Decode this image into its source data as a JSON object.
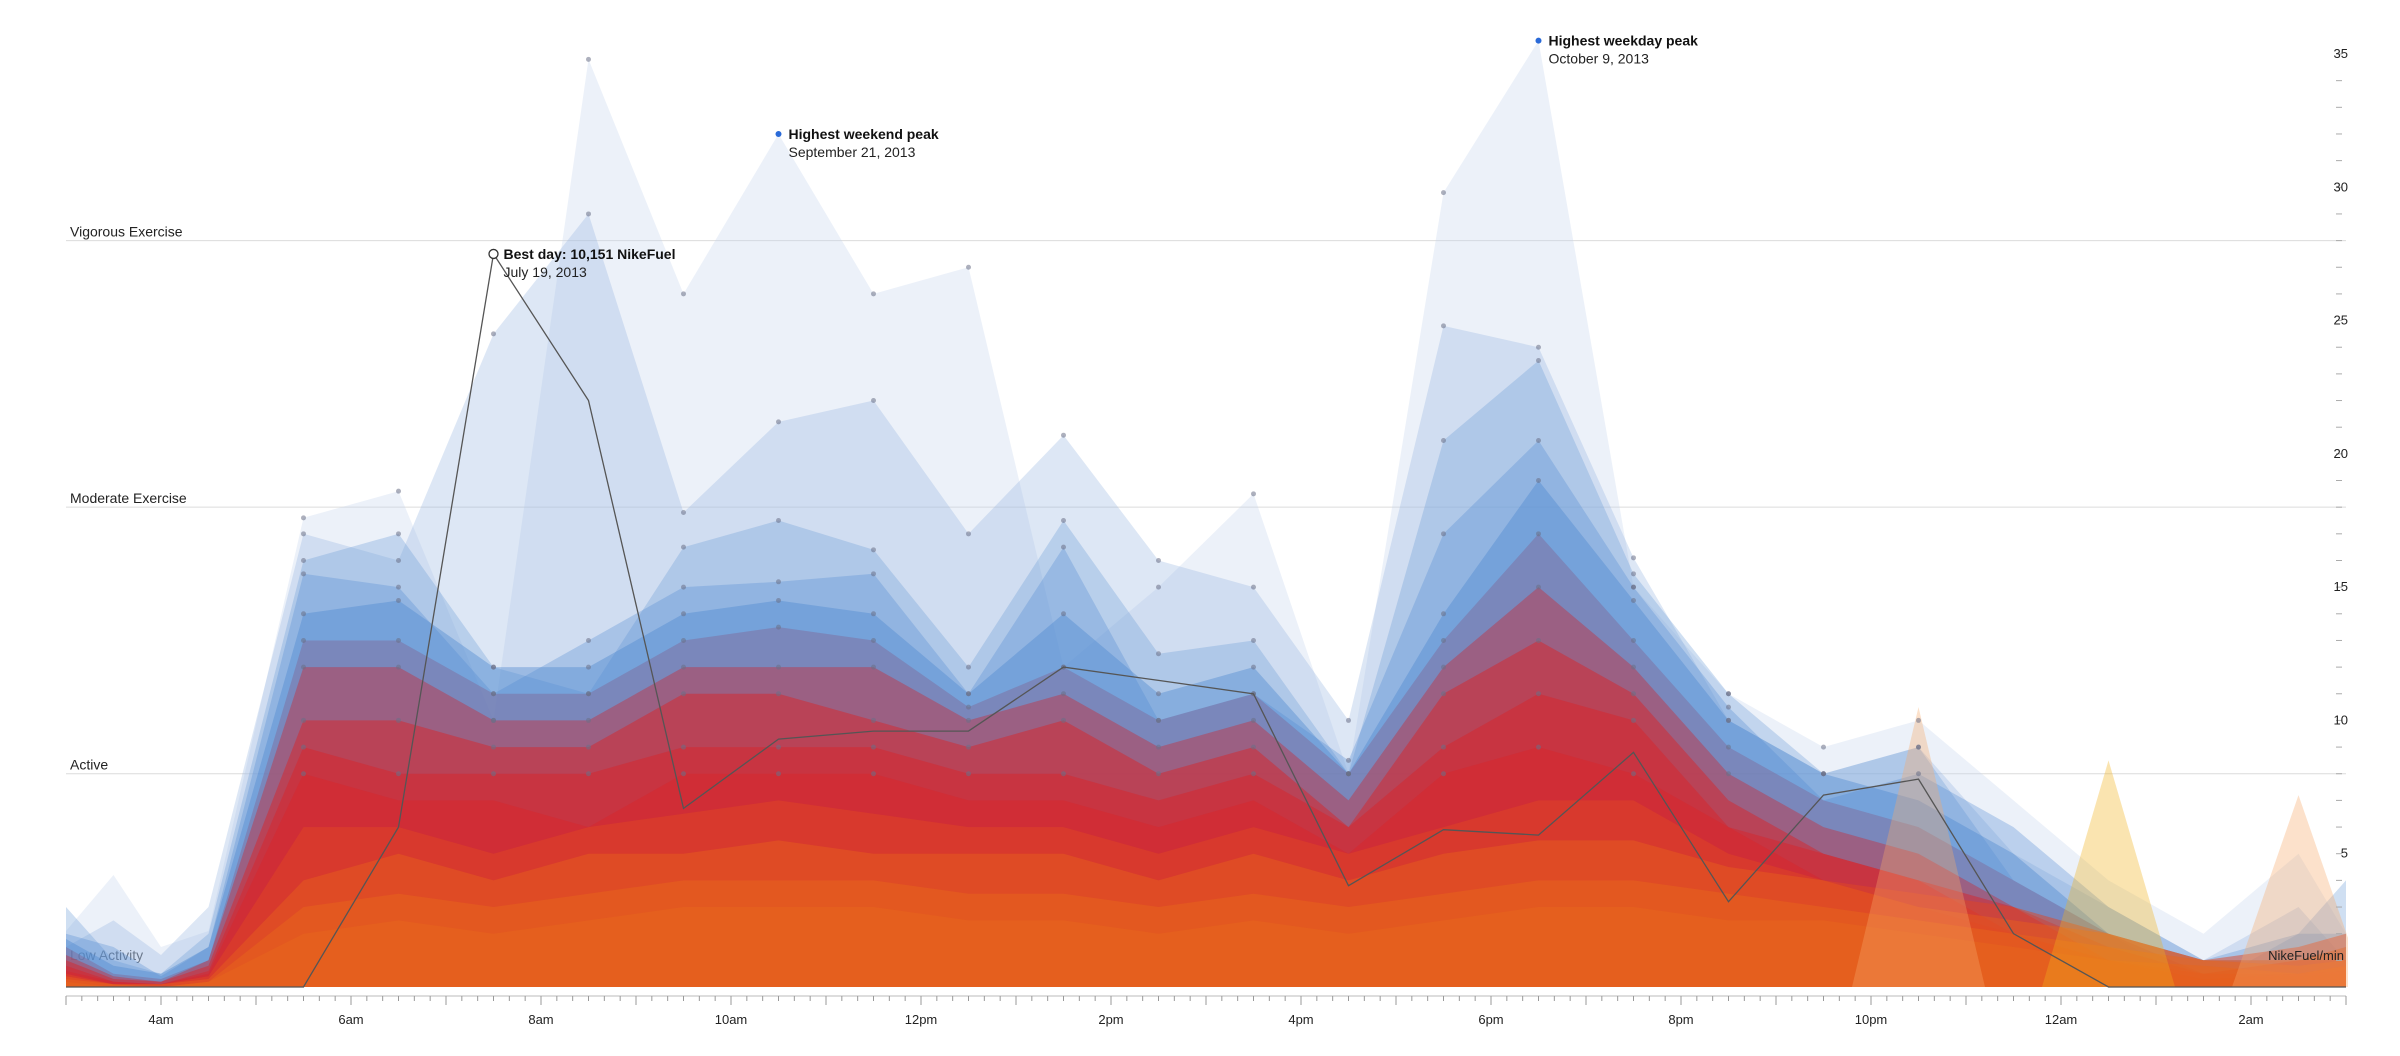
{
  "chart_data": {
    "type": "area",
    "title": "",
    "xlabel": "",
    "ylabel": "NikeFuel/min",
    "xlim": [
      3,
      27
    ],
    "ylim": [
      0,
      35
    ],
    "x_ticks": [
      {
        "value": 4,
        "label": "4am"
      },
      {
        "value": 6,
        "label": "6am"
      },
      {
        "value": 8,
        "label": "8am"
      },
      {
        "value": 10,
        "label": "10am"
      },
      {
        "value": 12,
        "label": "12pm"
      },
      {
        "value": 14,
        "label": "2pm"
      },
      {
        "value": 16,
        "label": "4pm"
      },
      {
        "value": 18,
        "label": "6pm"
      },
      {
        "value": 20,
        "label": "8pm"
      },
      {
        "value": 22,
        "label": "10pm"
      },
      {
        "value": 24,
        "label": "12am"
      },
      {
        "value": 26,
        "label": "2am"
      }
    ],
    "y_ticks": [
      5,
      10,
      15,
      20,
      25,
      30,
      35
    ],
    "activity_bands": [
      {
        "label": "Vigorous Exercise",
        "value": 28
      },
      {
        "label": "Moderate Exercise",
        "value": 18
      },
      {
        "label": "Active",
        "value": 8
      },
      {
        "label": "Low Activity",
        "value": 0
      }
    ],
    "best_day_series": {
      "name": "Best day: 10,151 NikeFuel",
      "x": [
        3,
        4.5,
        5.5,
        6.5,
        7.5,
        8.5,
        9.5,
        10.5,
        11.5,
        12.5,
        13.5,
        14.5,
        15.5,
        16.5,
        17.5,
        18.5,
        19.5,
        20.5,
        21.5,
        22.5,
        23.5,
        24.5,
        25.5,
        27
      ],
      "values": [
        0,
        0,
        0,
        6,
        27.5,
        22,
        6.7,
        9.3,
        9.6,
        9.6,
        12,
        11.5,
        11,
        3.8,
        5.9,
        5.7,
        8.8,
        3.2,
        7.2,
        7.8,
        2,
        0,
        0,
        0
      ]
    },
    "day_series": [
      {
        "x": [
          3,
          3.5,
          4,
          4.5,
          5.5,
          6.5,
          7.5,
          8.5,
          9.5,
          10.5,
          11.5,
          12.5,
          13.5,
          14.5,
          15.5,
          16.5,
          17.5,
          18.5,
          19.5,
          20.5,
          21.5,
          22.5,
          23.5,
          24.5,
          25.5,
          26.5,
          27
        ],
        "values": [
          2.1,
          4.2,
          1.5,
          2.1,
          17.6,
          18.6,
          10,
          34.8,
          26,
          32,
          26,
          27,
          12,
          15,
          18.5,
          8,
          29.8,
          35.5,
          15,
          11,
          9,
          10,
          7,
          4,
          2,
          5,
          2
        ]
      },
      {
        "x": [
          3,
          3.5,
          4,
          4.5,
          5.5,
          6.5,
          7.5,
          8.5,
          9.5,
          10.5,
          11.5,
          12.5,
          13.5,
          14.5,
          15.5,
          16.5,
          17.5,
          18.5,
          19.5,
          20.5,
          21.5,
          22.5,
          23.5,
          24.5,
          25.5,
          26.5,
          27
        ],
        "values": [
          1.5,
          2.5,
          1.2,
          3,
          17,
          16,
          24.5,
          29,
          17.8,
          21.2,
          22,
          17,
          20.7,
          16,
          15,
          10,
          24.8,
          24,
          16.1,
          10,
          8,
          9,
          5,
          3,
          1,
          3,
          1
        ]
      },
      {
        "x": [
          3,
          3.5,
          4,
          4.5,
          5.5,
          6.5,
          7.5,
          8.5,
          9.5,
          10.5,
          11.5,
          12.5,
          13.5,
          14.5,
          15.5,
          16.5,
          17.5,
          18.5,
          19.5,
          20.5,
          21.5,
          22.5,
          23.5,
          24.5,
          25.5,
          26.5,
          27
        ],
        "values": [
          3,
          1,
          0.5,
          2,
          16,
          17,
          12,
          11,
          16.5,
          17.5,
          16.4,
          12,
          17.5,
          12.5,
          13,
          8,
          20.5,
          23.5,
          15.5,
          11,
          8,
          9,
          4,
          2,
          0,
          2,
          4
        ]
      },
      {
        "x": [
          3,
          3.5,
          4,
          4.5,
          5.5,
          6.5,
          7.5,
          8.5,
          9.5,
          10.5,
          11.5,
          12.5,
          13.5,
          14.5,
          15.5,
          16.5,
          17.5,
          18.5,
          19.5,
          20.5,
          21.5,
          22.5,
          23.5,
          24.5,
          25.5,
          26.5,
          27
        ],
        "values": [
          2,
          1.5,
          0.4,
          1.5,
          15.5,
          15,
          11,
          13,
          15,
          15.2,
          15.5,
          11,
          16.5,
          10,
          11,
          8.5,
          17,
          20.5,
          15,
          10.5,
          7,
          8,
          6,
          3,
          1,
          2,
          2
        ]
      },
      {
        "x": [
          3,
          3.5,
          4,
          4.5,
          5.5,
          6.5,
          7.5,
          8.5,
          9.5,
          10.5,
          11.5,
          12.5,
          13.5,
          14.5,
          15.5,
          16.5,
          17.5,
          18.5,
          19.5,
          20.5,
          21.5,
          22.5,
          23.5,
          24.5,
          25.5,
          26.5,
          27
        ],
        "values": [
          1.8,
          0.8,
          0.5,
          1.5,
          14,
          14.5,
          12,
          12,
          14,
          14.5,
          14,
          11,
          14,
          11,
          12,
          8,
          14,
          19,
          14.5,
          10,
          8,
          7,
          5,
          2,
          1,
          1,
          1.5
        ]
      },
      {
        "x": [
          3,
          3.5,
          4,
          4.5,
          5.5,
          6.5,
          7.5,
          8.5,
          9.5,
          10.5,
          11.5,
          12.5,
          13.5,
          14.5,
          15.5,
          16.5,
          17.5,
          18.5,
          19.5,
          20.5,
          21.5,
          22.5,
          23.5,
          24.5,
          25.5,
          26.5,
          27
        ],
        "values": [
          1.5,
          0.5,
          0.3,
          1,
          13,
          13,
          11,
          11,
          13,
          13.5,
          13,
          10.5,
          12,
          10,
          11,
          8,
          13,
          17,
          13,
          9,
          7,
          6,
          4,
          2,
          0.5,
          1,
          1
        ]
      },
      {
        "x": [
          3,
          3.5,
          4,
          4.5,
          5.5,
          6.5,
          7.5,
          8.5,
          9.5,
          10.5,
          11.5,
          12.5,
          13.5,
          14.5,
          15.5,
          16.5,
          17.5,
          18.5,
          19.5,
          20.5,
          21.5,
          22.5,
          23.5,
          24.5,
          25.5,
          26.5,
          27
        ],
        "values": [
          1.2,
          0.4,
          0.2,
          1,
          12,
          12,
          10,
          10,
          12,
          12,
          12,
          10,
          11,
          9,
          10,
          7,
          12,
          15,
          12,
          8,
          6,
          5,
          3,
          1.5,
          0.5,
          1,
          1
        ]
      },
      {
        "x": [
          3,
          3.5,
          4,
          4.5,
          5.5,
          6.5,
          7.5,
          8.5,
          9.5,
          10.5,
          11.5,
          12.5,
          13.5,
          14.5,
          15.5,
          16.5,
          17.5,
          18.5,
          19.5,
          20.5,
          21.5,
          22.5,
          23.5,
          24.5,
          25.5,
          26.5,
          27
        ],
        "values": [
          1,
          0.3,
          0.2,
          0.8,
          10,
          10,
          9,
          9,
          11,
          11,
          10,
          9,
          10,
          8,
          9,
          6,
          11,
          13,
          11,
          7,
          5,
          4,
          3,
          1,
          0.5,
          0.5,
          0.8
        ]
      },
      {
        "x": [
          3,
          3.5,
          4,
          4.5,
          5.5,
          6.5,
          7.5,
          8.5,
          9.5,
          10.5,
          11.5,
          12.5,
          13.5,
          14.5,
          15.5,
          16.5,
          17.5,
          18.5,
          19.5,
          20.5,
          21.5,
          22.5,
          23.5,
          24.5,
          25.5,
          26.5,
          27
        ],
        "values": [
          0.8,
          0.2,
          0.1,
          0.6,
          9,
          8,
          8,
          8,
          9,
          9,
          9,
          8,
          8,
          7,
          8,
          6,
          9,
          11,
          10,
          6,
          5,
          4,
          2,
          1,
          0.3,
          0.5,
          0.6
        ]
      },
      {
        "x": [
          3,
          3.5,
          4,
          4.5,
          5.5,
          6.5,
          7.5,
          8.5,
          9.5,
          10.5,
          11.5,
          12.5,
          13.5,
          14.5,
          15.5,
          16.5,
          17.5,
          18.5,
          19.5,
          20.5,
          21.5,
          22.5,
          23.5,
          24.5,
          25.5,
          26.5,
          27
        ],
        "values": [
          0.6,
          0.2,
          0.1,
          0.5,
          8,
          7,
          7,
          6,
          8,
          8,
          8,
          7,
          7,
          6,
          7,
          5,
          8,
          9,
          8,
          6,
          4,
          3,
          2,
          1,
          0.3,
          0.4,
          0.5
        ]
      },
      {
        "x": [
          3,
          3.5,
          4,
          4.5,
          5.5,
          6.5,
          7.5,
          8.5,
          9.5,
          10.5,
          11.5,
          12.5,
          13.5,
          14.5,
          15.5,
          16.5,
          17.5,
          18.5,
          19.5,
          20.5,
          21.5,
          22.5,
          23.5,
          24.5,
          25.5,
          26.5,
          27
        ],
        "values": [
          0.5,
          0.1,
          0.1,
          0.4,
          6,
          6,
          5,
          6,
          6.5,
          7,
          6.5,
          6,
          6,
          5,
          6,
          5,
          6,
          7,
          7,
          5,
          4,
          3.5,
          3,
          2,
          1,
          1.5,
          2
        ]
      },
      {
        "x": [
          3,
          3.5,
          4,
          4.5,
          5.5,
          6.5,
          7.5,
          8.5,
          9.5,
          10.5,
          11.5,
          12.5,
          13.5,
          14.5,
          15.5,
          16.5,
          17.5,
          18.5,
          19.5,
          20.5,
          21.5,
          22.5,
          23.5,
          24.5,
          25.5,
          26.5,
          27
        ],
        "values": [
          0.4,
          0.1,
          0.1,
          0.3,
          4,
          5,
          4,
          5,
          5,
          5.5,
          5,
          5,
          5,
          4,
          5,
          4,
          5,
          5.5,
          5.5,
          4.5,
          4,
          3,
          2.5,
          2,
          1,
          1,
          1.5
        ]
      },
      {
        "x": [
          3,
          3.5,
          4,
          4.5,
          5.5,
          6.5,
          7.5,
          8.5,
          9.5,
          10.5,
          11.5,
          12.5,
          13.5,
          14.5,
          15.5,
          16.5,
          17.5,
          18.5,
          19.5,
          20.5,
          21.5,
          22.5,
          23.5,
          24.5,
          25.5,
          26.5,
          27
        ],
        "values": [
          0.3,
          0.1,
          0,
          0.2,
          3,
          3.5,
          3,
          3.5,
          4,
          4,
          4,
          3.5,
          3.5,
          3,
          3.5,
          3,
          3.5,
          4,
          4,
          3.5,
          3,
          2.5,
          2,
          1.5,
          1,
          0.8,
          1
        ]
      },
      {
        "x": [
          3,
          3.5,
          4,
          4.5,
          5.5,
          6.5,
          7.5,
          8.5,
          9.5,
          10.5,
          11.5,
          12.5,
          13.5,
          14.5,
          15.5,
          16.5,
          17.5,
          18.5,
          19.5,
          20.5,
          21.5,
          22.5,
          23.5,
          24.5,
          25.5,
          26.5,
          27
        ],
        "values": [
          0.2,
          0,
          0,
          0.2,
          2,
          2.5,
          2,
          2.5,
          3,
          3,
          3,
          2.5,
          2.5,
          2,
          2.5,
          2,
          2.5,
          3,
          3,
          2.5,
          2.5,
          2,
          1.5,
          1,
          0.8,
          0.5,
          0.8
        ]
      }
    ],
    "late_night_peaks": [
      {
        "x": 22.5,
        "value": 10.5
      },
      {
        "x": 24.5,
        "value": 8.5
      },
      {
        "x": 26.5,
        "value": 7.2
      }
    ],
    "annotations": [
      {
        "title": "Best day: 10,151 NikeFuel",
        "date": "July 19, 2013",
        "x": 7.5,
        "value": 27.5,
        "marker": "open"
      },
      {
        "title": "Highest weekend peak",
        "date": "September 21, 2013",
        "x": 10.5,
        "value": 32,
        "marker": "dot"
      },
      {
        "title": "Highest weekday peak",
        "date": "October 9, 2013",
        "x": 18.5,
        "value": 35.5,
        "marker": "dot"
      }
    ],
    "colors": {
      "blue_high": "#4a86cf",
      "blue_low": "#c8d6ee",
      "red": "#d7262b",
      "orange": "#e8661c",
      "yellow": "#f2b21c",
      "axis": "#888888",
      "best_line": "#555555",
      "marker_blue": "#2a6ad8"
    }
  }
}
